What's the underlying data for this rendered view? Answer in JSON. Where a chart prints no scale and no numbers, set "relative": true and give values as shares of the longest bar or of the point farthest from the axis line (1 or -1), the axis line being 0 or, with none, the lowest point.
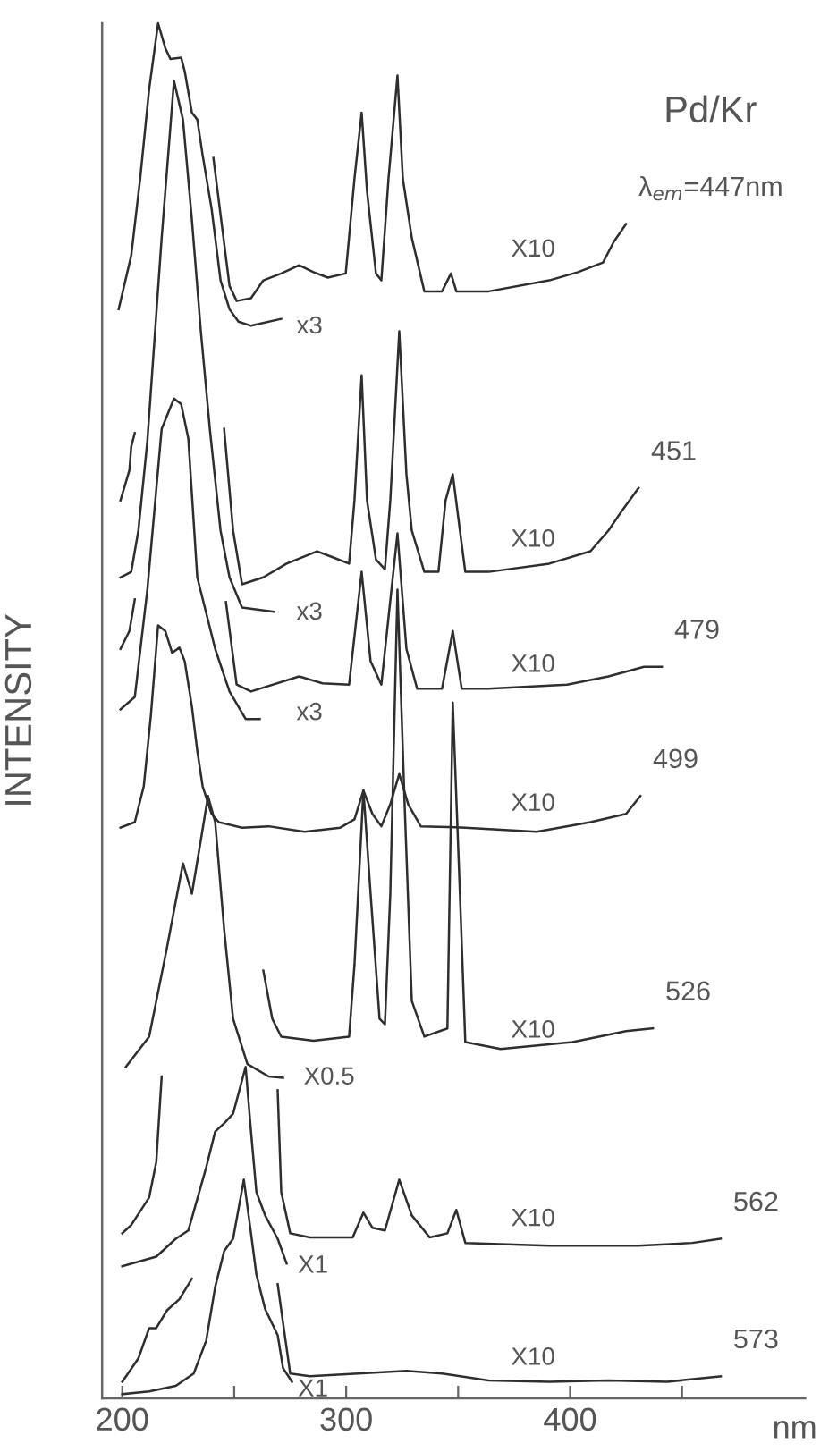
{
  "chart_data": {
    "type": "line",
    "relative": true,
    "title": "Pd/Kr",
    "ylabel": "INTENSITY",
    "xlabel": "nm",
    "xlim": [
      191,
      505
    ],
    "xticks": [
      200,
      {
        "value": 250,
        "label": null
      },
      300,
      {
        "value": 350,
        "label": null
      },
      400,
      {
        "value": 450,
        "label": null
      }
    ],
    "grid": false,
    "legend": false,
    "tick_labels": "x",
    "line_style": "solid",
    "marker": "none",
    "series": [
      {
        "name": "λ$_{em}$=447nm",
        "color": "#2e2e2e",
        "x": [
          198.4,
          204.0,
          208.0,
          212.0,
          216.0,
          219.2,
          221.5,
          226.3,
          227.9,
          231.1,
          233.5,
          235.9,
          239.9,
          243.9,
          247.9,
          251.9,
          257.5,
          271.0,
          null,
          240.7,
          247.9,
          251.1,
          257.5,
          263.0,
          271.0,
          279.0,
          285.4,
          291.8,
          299.8,
          303.7,
          306.9,
          309.3,
          313.3,
          315.7,
          318.9,
          322.9,
          325.3,
          329.3,
          334.9,
          342.8,
          346.8,
          349.2,
          363.6,
          390.7,
          403.5,
          414.7,
          419.5,
          425.0
        ],
        "values": [
          0.792,
          0.831,
          0.887,
          0.952,
          1.0,
          0.982,
          0.974,
          0.975,
          0.965,
          0.935,
          0.93,
          0.904,
          0.865,
          0.813,
          0.792,
          0.783,
          0.78,
          0.785,
          null,
          0.902,
          0.809,
          0.798,
          0.8,
          0.813,
          0.818,
          0.824,
          0.819,
          0.815,
          0.818,
          0.887,
          0.935,
          0.878,
          0.818,
          0.813,
          0.887,
          0.962,
          0.887,
          0.844,
          0.805,
          0.805,
          0.818,
          0.805,
          0.805,
          0.813,
          0.819,
          0.826,
          0.841,
          0.854
        ]
      },
      {
        "name": "451",
        "color": "#2e2e2e",
        "x": [
          199.2,
          203.2,
          204.0,
          205.6,
          null,
          199.2,
          204.0,
          207.2,
          211.2,
          217.6,
          223.1,
          227.1,
          231.1,
          235.1,
          239.1,
          243.9,
          247.9,
          253.5,
          267.8,
          null,
          245.5,
          249.5,
          253.5,
          263.0,
          273.4,
          287.0,
          295.0,
          301.3,
          303.7,
          306.9,
          309.3,
          313.3,
          317.3,
          319.7,
          323.7,
          326.9,
          329.3,
          334.9,
          341.2,
          344.4,
          347.6,
          350.8,
          353.2,
          363.6,
          390.7,
          409.1,
          417.1,
          423.4,
          430.6
        ],
        "values": [
          0.653,
          0.675,
          0.692,
          0.702,
          null,
          0.597,
          0.601,
          0.631,
          0.696,
          0.844,
          0.958,
          0.93,
          0.857,
          0.776,
          0.705,
          0.631,
          0.597,
          0.575,
          0.572,
          null,
          0.705,
          0.631,
          0.592,
          0.597,
          0.607,
          0.616,
          0.611,
          0.607,
          0.653,
          0.744,
          0.653,
          0.61,
          0.603,
          0.653,
          0.776,
          0.672,
          0.631,
          0.601,
          0.601,
          0.653,
          0.672,
          0.631,
          0.601,
          0.601,
          0.607,
          0.616,
          0.631,
          0.646,
          0.662
        ]
      },
      {
        "name": "479",
        "color": "#2e2e2e",
        "x": [
          199.2,
          203.2,
          205.6,
          null,
          199.2,
          205.6,
          211.2,
          217.6,
          223.1,
          226.3,
          229.5,
          233.5,
          241.5,
          247.9,
          255.1,
          261.4,
          null,
          246.3,
          251.1,
          257.5,
          279.0,
          289.4,
          301.3,
          306.9,
          310.9,
          315.7,
          322.9,
          326.9,
          331.7,
          342.8,
          347.6,
          351.6,
          363.6,
          398.7,
          417.1,
          433.0,
          441.0
        ],
        "values": [
          0.545,
          0.558,
          0.581,
          null,
          0.501,
          0.51,
          0.588,
          0.705,
          0.727,
          0.723,
          0.698,
          0.597,
          0.545,
          0.514,
          0.494,
          0.494,
          null,
          0.579,
          0.519,
          0.514,
          0.525,
          0.52,
          0.519,
          0.601,
          0.536,
          0.519,
          0.629,
          0.545,
          0.516,
          0.516,
          0.558,
          0.516,
          0.516,
          0.519,
          0.525,
          0.532,
          0.532
        ]
      },
      {
        "name": "499",
        "color": "#2e2e2e",
        "x": [
          199.2,
          205.6,
          209.6,
          212.8,
          216.0,
          219.2,
          222.3,
          225.5,
          227.9,
          231.1,
          233.5,
          235.9,
          239.9,
          243.1,
          253.5,
          265.4,
          281.4,
          297.4,
          303.7,
          307.7,
          311.7,
          315.7,
          319.7,
          323.7,
          327.7,
          333.3,
          353.2,
          385.1,
          409.1,
          425.0,
          431.4
        ],
        "values": [
          0.415,
          0.419,
          0.445,
          0.497,
          0.562,
          0.558,
          0.542,
          0.546,
          0.536,
          0.503,
          0.471,
          0.445,
          0.425,
          0.419,
          0.415,
          0.416,
          0.412,
          0.415,
          0.421,
          0.442,
          0.425,
          0.416,
          0.432,
          0.454,
          0.432,
          0.416,
          0.415,
          0.412,
          0.419,
          0.425,
          0.438
        ]
      },
      {
        "name": "526",
        "color": "#2e2e2e",
        "x": [
          201.6,
          212.0,
          220.0,
          227.1,
          231.1,
          235.1,
          238.3,
          241.5,
          245.5,
          249.5,
          255.9,
          265.4,
          271.8,
          null,
          263.0,
          267.0,
          271.0,
          285.4,
          301.3,
          303.7,
          307.7,
          310.9,
          314.9,
          317.3,
          319.7,
          322.9,
          326.1,
          329.3,
          334.9,
          345.2,
          347.6,
          350.8,
          353.2,
          369.0,
          401.1,
          425.0,
          437.0
        ],
        "values": [
          0.241,
          0.263,
          0.328,
          0.389,
          0.367,
          0.406,
          0.438,
          0.419,
          0.341,
          0.276,
          0.243,
          0.234,
          0.233,
          null,
          0.311,
          0.276,
          0.263,
          0.26,
          0.263,
          0.315,
          0.442,
          0.367,
          0.276,
          0.272,
          0.367,
          0.588,
          0.432,
          0.289,
          0.263,
          0.269,
          0.506,
          0.367,
          0.259,
          0.254,
          0.259,
          0.267,
          0.269
        ]
      },
      {
        "name": "562",
        "color": "#2e2e2e",
        "x": [
          200.0,
          204.0,
          212.0,
          215.2,
          217.6,
          null,
          200.0,
          215.2,
          223.9,
          229.5,
          237.5,
          241.5,
          245.5,
          249.5,
          255.1,
          257.5,
          259.9,
          263.8,
          269.4,
          273.4,
          null,
          269.4,
          271.0,
          275.0,
          283.8,
          302.9,
          307.7,
          311.7,
          317.3,
          323.7,
          329.3,
          337.3,
          345.2,
          349.2,
          353.2,
          390.7,
          430.6,
          454.6,
          467.3
        ],
        "values": [
          0.12,
          0.126,
          0.146,
          0.172,
          0.234,
          null,
          0.096,
          0.103,
          0.116,
          0.122,
          0.168,
          0.194,
          0.2,
          0.207,
          0.241,
          0.194,
          0.15,
          0.133,
          0.116,
          0.098,
          null,
          0.224,
          0.15,
          0.12,
          0.117,
          0.117,
          0.135,
          0.124,
          0.122,
          0.159,
          0.133,
          0.117,
          0.12,
          0.137,
          0.113,
          0.111,
          0.111,
          0.113,
          0.116
        ]
      },
      {
        "name": "573",
        "color": "#2e2e2e",
        "x": [
          200.0,
          207.2,
          212.0,
          215.2,
          220.0,
          225.5,
          231.1,
          null,
          200.0,
          212.0,
          223.9,
          231.9,
          237.5,
          241.5,
          245.5,
          249.5,
          254.3,
          257.5,
          259.9,
          263.8,
          269.4,
          271.8,
          275.8,
          null,
          269.4,
          271.8,
          275.0,
          283.8,
          305.3,
          326.9,
          342.8,
          363.6,
          390.7,
          417.1,
          443.4,
          467.3
        ],
        "values": [
          0.012,
          0.029,
          0.051,
          0.051,
          0.064,
          0.072,
          0.087,
          null,
          0.003,
          0.005,
          0.009,
          0.018,
          0.042,
          0.081,
          0.107,
          0.116,
          0.159,
          0.12,
          0.09,
          0.065,
          0.046,
          0.022,
          0.012,
          null,
          0.083,
          0.055,
          0.018,
          0.016,
          0.018,
          0.02,
          0.018,
          0.013,
          0.012,
          0.013,
          0.012,
          0.016
        ]
      }
    ],
    "annotations": [
      "X10",
      "x3",
      "X10",
      "x3",
      "X10",
      "x3",
      "X10",
      "X10",
      "X0.5",
      "X10",
      "X1",
      "X10",
      "X1"
    ]
  }
}
